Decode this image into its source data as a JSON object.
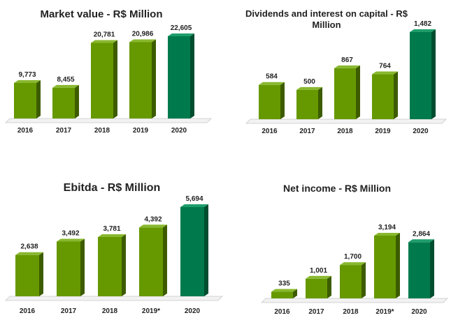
{
  "colors": {
    "bar_front": "#669900",
    "bar_side": "#3d5c00",
    "bar_top": "#88b82e",
    "highlight_front": "#007a4d",
    "highlight_side": "#004d30",
    "highlight_top": "#1f9e6b",
    "floor": "#f2f2f2"
  },
  "chart_data": [
    {
      "type": "bar",
      "title": "Market value - R$ Million",
      "categories": [
        "2016",
        "2017",
        "2018",
        "2019",
        "2020"
      ],
      "values": [
        9773,
        8455,
        20781,
        20986,
        22605
      ],
      "labels": [
        "9,773",
        "8,455",
        "20,781",
        "20,986",
        "22,605"
      ],
      "highlight_index": 4,
      "xlabel": "",
      "ylabel": "",
      "grid": false
    },
    {
      "type": "bar",
      "title": "Dividends and interest on capital - R$ Million",
      "categories": [
        "2016",
        "2017",
        "2018",
        "2019",
        "2020"
      ],
      "values": [
        584,
        500,
        867,
        764,
        1482
      ],
      "labels": [
        "584",
        "500",
        "867",
        "764",
        "1,482"
      ],
      "highlight_index": 4,
      "xlabel": "",
      "ylabel": "",
      "grid": false
    },
    {
      "type": "bar",
      "title": "Ebitda - R$ Million",
      "categories": [
        "2016",
        "2017",
        "2018",
        "2019*",
        "2020"
      ],
      "values": [
        2638,
        3492,
        3781,
        4392,
        5694
      ],
      "labels": [
        "2,638",
        "3,492",
        "3,781",
        "4,392",
        "5,694"
      ],
      "highlight_index": 4,
      "xlabel": "",
      "ylabel": "",
      "grid": false
    },
    {
      "type": "bar",
      "title": "Net income - R$ Million",
      "categories": [
        "2016",
        "2017",
        "2018",
        "2019*",
        "2020"
      ],
      "values": [
        335,
        1001,
        1700,
        3194,
        2864
      ],
      "labels": [
        "335",
        "1,001",
        "1,700",
        "3,194",
        "2,864"
      ],
      "highlight_index": 4,
      "xlabel": "",
      "ylabel": "",
      "grid": false
    }
  ]
}
